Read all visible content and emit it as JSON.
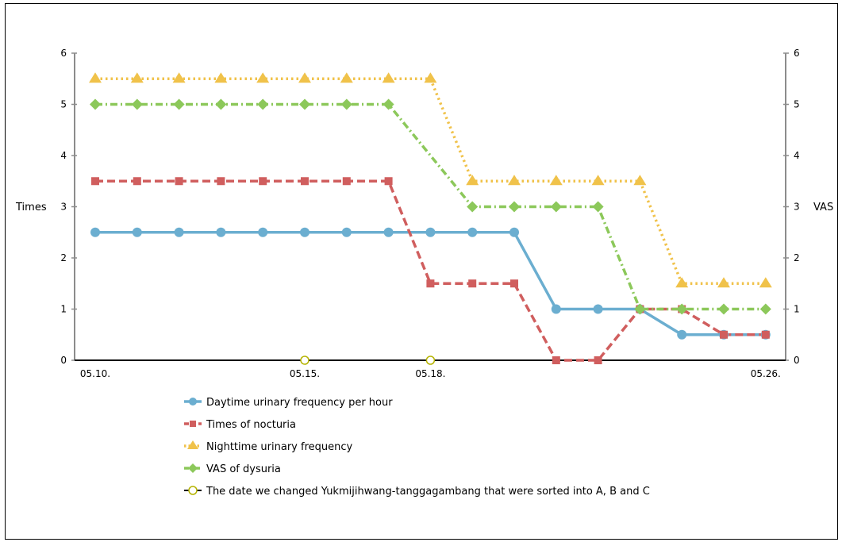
{
  "chart_data": {
    "type": "line",
    "title": "",
    "ylabel_left": "Times",
    "ylabel_right": "VAS",
    "ylim": [
      0,
      6
    ],
    "yticks": [
      "0",
      "1",
      "2",
      "3",
      "4",
      "5",
      "6"
    ],
    "x": [
      10,
      11,
      12,
      13,
      14,
      15,
      16,
      17,
      18,
      19,
      20,
      21,
      22,
      23,
      24,
      25,
      26
    ],
    "xtick_labels": [
      {
        "x": 10,
        "label": "05.10.",
        "color": "#000000"
      },
      {
        "x": 15,
        "label": "05.15.",
        "color": "#b5b300"
      },
      {
        "x": 18,
        "label": "05.18.",
        "color": "#b5b300"
      },
      {
        "x": 26,
        "label": "05.26.",
        "color": "#000000"
      }
    ],
    "series": [
      {
        "name": "Daytime urinary frequency per hour",
        "color": "#6baed0",
        "marker": "circle",
        "dash": "solid",
        "values": [
          2.5,
          2.5,
          2.5,
          2.5,
          2.5,
          2.5,
          2.5,
          2.5,
          2.5,
          2.5,
          2.5,
          1,
          1,
          1,
          0.5,
          0.5,
          0.5
        ]
      },
      {
        "name": "Times of nocturia",
        "color": "#d05e5e",
        "marker": "square",
        "dash": "dashed",
        "values": [
          3.5,
          3.5,
          3.5,
          3.5,
          3.5,
          3.5,
          3.5,
          3.5,
          1.5,
          1.5,
          1.5,
          0,
          0,
          1,
          1,
          0.5,
          0.5
        ]
      },
      {
        "name": "Nighttime urinary frequency",
        "color": "#f0c24a",
        "marker": "triangle",
        "dash": "dotted",
        "values": [
          5.5,
          5.5,
          5.5,
          5.5,
          5.5,
          5.5,
          5.5,
          5.5,
          5.5,
          3.5,
          3.5,
          3.5,
          3.5,
          3.5,
          1.5,
          1.5,
          1.5
        ]
      },
      {
        "name": "VAS of dysuria",
        "color": "#8cc85a",
        "marker": "diamond",
        "dash": "dashdot",
        "values": [
          5,
          5,
          5,
          5,
          5,
          5,
          5,
          5,
          null,
          3,
          3,
          3,
          3,
          1,
          1,
          1,
          1
        ]
      }
    ],
    "change_markers": {
      "name": "The date we changed Yukmijihwang-tanggagambang that were sorted into A, B and C",
      "x": [
        15,
        18
      ],
      "y": 0,
      "color": "#b5b300"
    },
    "grid": false,
    "legend_position": "bottom"
  }
}
